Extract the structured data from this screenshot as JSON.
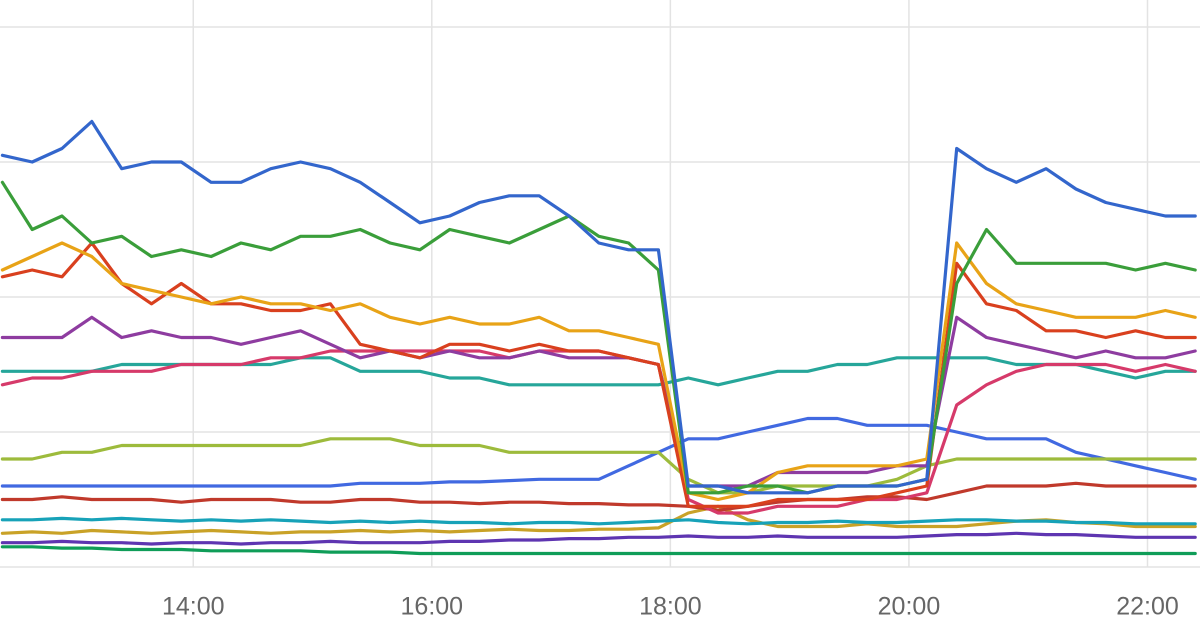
{
  "chart_data": {
    "type": "line",
    "x": [
      12.4,
      12.65,
      12.9,
      13.15,
      13.4,
      13.65,
      13.9,
      14.15,
      14.4,
      14.65,
      14.9,
      15.15,
      15.4,
      15.65,
      15.9,
      16.15,
      16.4,
      16.65,
      16.9,
      17.15,
      17.4,
      17.65,
      17.9,
      18.15,
      18.4,
      18.65,
      18.9,
      19.15,
      19.4,
      19.65,
      19.9,
      20.15,
      20.4,
      20.65,
      20.9,
      21.15,
      21.4,
      21.65,
      21.9,
      22.15,
      22.4
    ],
    "xlim": [
      12.38,
      22.44
    ],
    "xticks": [
      {
        "value": 14,
        "label": "14:00"
      },
      {
        "value": 16,
        "label": "16:00"
      },
      {
        "value": 18,
        "label": "18:00"
      },
      {
        "value": 20,
        "label": "20:00"
      },
      {
        "value": 22,
        "label": "22:00"
      }
    ],
    "ylim": [
      0,
      4.2
    ],
    "yticks": [
      0,
      1,
      2,
      3,
      4
    ],
    "grid": true,
    "series": [
      {
        "color": "#0f9d58",
        "values": [
          0.15,
          0.15,
          0.14,
          0.14,
          0.13,
          0.13,
          0.13,
          0.12,
          0.12,
          0.12,
          0.12,
          0.11,
          0.11,
          0.11,
          0.1,
          0.1,
          0.1,
          0.1,
          0.1,
          0.1,
          0.1,
          0.1,
          0.1,
          0.1,
          0.1,
          0.1,
          0.1,
          0.1,
          0.1,
          0.1,
          0.1,
          0.1,
          0.1,
          0.1,
          0.1,
          0.1,
          0.1,
          0.1,
          0.1,
          0.1,
          0.1
        ]
      },
      {
        "color": "#5e35b1",
        "values": [
          0.18,
          0.18,
          0.19,
          0.18,
          0.18,
          0.17,
          0.18,
          0.18,
          0.17,
          0.18,
          0.18,
          0.19,
          0.18,
          0.18,
          0.18,
          0.19,
          0.19,
          0.2,
          0.2,
          0.21,
          0.21,
          0.22,
          0.22,
          0.23,
          0.22,
          0.22,
          0.23,
          0.22,
          0.22,
          0.22,
          0.22,
          0.23,
          0.24,
          0.24,
          0.25,
          0.24,
          0.24,
          0.23,
          0.22,
          0.22,
          0.22
        ]
      },
      {
        "color": "#c9a227",
        "values": [
          0.25,
          0.26,
          0.25,
          0.27,
          0.26,
          0.25,
          0.26,
          0.27,
          0.26,
          0.25,
          0.26,
          0.26,
          0.27,
          0.26,
          0.27,
          0.26,
          0.27,
          0.28,
          0.27,
          0.27,
          0.28,
          0.28,
          0.29,
          0.4,
          0.45,
          0.35,
          0.3,
          0.3,
          0.3,
          0.32,
          0.3,
          0.3,
          0.3,
          0.32,
          0.34,
          0.35,
          0.33,
          0.32,
          0.3,
          0.3,
          0.3
        ]
      },
      {
        "color": "#17a2b8",
        "values": [
          0.35,
          0.35,
          0.36,
          0.35,
          0.36,
          0.35,
          0.34,
          0.35,
          0.34,
          0.35,
          0.34,
          0.33,
          0.34,
          0.33,
          0.34,
          0.33,
          0.33,
          0.32,
          0.33,
          0.33,
          0.32,
          0.33,
          0.34,
          0.35,
          0.33,
          0.32,
          0.33,
          0.33,
          0.34,
          0.33,
          0.33,
          0.34,
          0.35,
          0.35,
          0.34,
          0.34,
          0.33,
          0.33,
          0.32,
          0.32,
          0.32
        ]
      },
      {
        "color": "#c0392b",
        "values": [
          0.5,
          0.5,
          0.52,
          0.5,
          0.5,
          0.5,
          0.48,
          0.5,
          0.5,
          0.5,
          0.48,
          0.48,
          0.5,
          0.5,
          0.48,
          0.48,
          0.47,
          0.48,
          0.48,
          0.47,
          0.47,
          0.46,
          0.46,
          0.45,
          0.42,
          0.45,
          0.48,
          0.5,
          0.5,
          0.52,
          0.52,
          0.5,
          0.55,
          0.6,
          0.6,
          0.6,
          0.62,
          0.6,
          0.6,
          0.6,
          0.6
        ]
      },
      {
        "color": "#4169e1",
        "values": [
          0.6,
          0.6,
          0.6,
          0.6,
          0.6,
          0.6,
          0.6,
          0.6,
          0.6,
          0.6,
          0.6,
          0.6,
          0.62,
          0.62,
          0.62,
          0.63,
          0.63,
          0.64,
          0.65,
          0.65,
          0.65,
          0.75,
          0.85,
          0.95,
          0.95,
          1.0,
          1.05,
          1.1,
          1.1,
          1.05,
          1.05,
          1.05,
          1.0,
          0.95,
          0.95,
          0.95,
          0.85,
          0.8,
          0.75,
          0.7,
          0.65
        ]
      },
      {
        "color": "#9dbb3c",
        "values": [
          0.8,
          0.8,
          0.85,
          0.85,
          0.9,
          0.9,
          0.9,
          0.9,
          0.9,
          0.9,
          0.9,
          0.95,
          0.95,
          0.95,
          0.9,
          0.9,
          0.9,
          0.85,
          0.85,
          0.85,
          0.85,
          0.85,
          0.85,
          0.65,
          0.55,
          0.55,
          0.6,
          0.6,
          0.6,
          0.6,
          0.65,
          0.75,
          0.8,
          0.8,
          0.8,
          0.8,
          0.8,
          0.8,
          0.8,
          0.8,
          0.8
        ]
      },
      {
        "color": "#26a69a",
        "values": [
          1.45,
          1.45,
          1.45,
          1.45,
          1.5,
          1.5,
          1.5,
          1.5,
          1.5,
          1.5,
          1.55,
          1.55,
          1.45,
          1.45,
          1.45,
          1.4,
          1.4,
          1.35,
          1.35,
          1.35,
          1.35,
          1.35,
          1.35,
          1.4,
          1.35,
          1.4,
          1.45,
          1.45,
          1.5,
          1.5,
          1.55,
          1.55,
          1.55,
          1.55,
          1.5,
          1.5,
          1.5,
          1.45,
          1.4,
          1.45,
          1.45
        ]
      },
      {
        "color": "#d63a6a",
        "values": [
          1.35,
          1.4,
          1.4,
          1.45,
          1.45,
          1.45,
          1.5,
          1.5,
          1.5,
          1.55,
          1.55,
          1.6,
          1.6,
          1.6,
          1.6,
          1.6,
          1.6,
          1.55,
          1.6,
          1.6,
          1.6,
          1.55,
          1.5,
          0.5,
          0.4,
          0.4,
          0.45,
          0.45,
          0.45,
          0.5,
          0.5,
          0.55,
          1.2,
          1.35,
          1.45,
          1.5,
          1.5,
          1.5,
          1.45,
          1.5,
          1.45
        ]
      },
      {
        "color": "#8e3ca0",
        "values": [
          1.7,
          1.7,
          1.7,
          1.85,
          1.7,
          1.75,
          1.7,
          1.7,
          1.65,
          1.7,
          1.75,
          1.65,
          1.55,
          1.6,
          1.55,
          1.6,
          1.55,
          1.55,
          1.6,
          1.55,
          1.55,
          1.55,
          1.5,
          0.6,
          0.6,
          0.6,
          0.7,
          0.7,
          0.7,
          0.7,
          0.75,
          0.75,
          1.85,
          1.7,
          1.65,
          1.6,
          1.55,
          1.6,
          1.55,
          1.55,
          1.6
        ]
      },
      {
        "color": "#d9401e",
        "values": [
          2.15,
          2.2,
          2.15,
          2.4,
          2.1,
          1.95,
          2.1,
          1.95,
          1.95,
          1.9,
          1.9,
          1.95,
          1.65,
          1.6,
          1.55,
          1.65,
          1.65,
          1.6,
          1.65,
          1.6,
          1.6,
          1.55,
          1.5,
          0.45,
          0.45,
          0.45,
          0.5,
          0.5,
          0.5,
          0.5,
          0.55,
          0.6,
          2.25,
          1.95,
          1.9,
          1.75,
          1.75,
          1.7,
          1.75,
          1.7,
          1.7
        ]
      },
      {
        "color": "#e8a317",
        "values": [
          2.2,
          2.3,
          2.4,
          2.3,
          2.1,
          2.05,
          2.0,
          1.95,
          2.0,
          1.95,
          1.95,
          1.9,
          1.95,
          1.85,
          1.8,
          1.85,
          1.8,
          1.8,
          1.85,
          1.75,
          1.75,
          1.7,
          1.65,
          0.55,
          0.5,
          0.55,
          0.7,
          0.75,
          0.75,
          0.75,
          0.75,
          0.8,
          2.4,
          2.1,
          1.95,
          1.9,
          1.85,
          1.85,
          1.85,
          1.9,
          1.85
        ]
      },
      {
        "color": "#3a9e3a",
        "values": [
          2.85,
          2.5,
          2.6,
          2.4,
          2.45,
          2.3,
          2.35,
          2.3,
          2.4,
          2.35,
          2.45,
          2.45,
          2.5,
          2.4,
          2.35,
          2.5,
          2.45,
          2.4,
          2.5,
          2.6,
          2.45,
          2.4,
          2.2,
          0.55,
          0.55,
          0.6,
          0.6,
          0.55,
          0.6,
          0.6,
          0.6,
          0.65,
          2.1,
          2.5,
          2.25,
          2.25,
          2.25,
          2.25,
          2.2,
          2.25,
          2.2
        ]
      },
      {
        "color": "#3366cc",
        "values": [
          3.05,
          3.0,
          3.1,
          3.3,
          2.95,
          3.0,
          3.0,
          2.85,
          2.85,
          2.95,
          3.0,
          2.95,
          2.85,
          2.7,
          2.55,
          2.6,
          2.7,
          2.75,
          2.75,
          2.6,
          2.4,
          2.35,
          2.35,
          0.6,
          0.6,
          0.55,
          0.55,
          0.55,
          0.6,
          0.6,
          0.6,
          0.65,
          3.1,
          2.95,
          2.85,
          2.95,
          2.8,
          2.7,
          2.65,
          2.6,
          2.6
        ]
      }
    ]
  }
}
